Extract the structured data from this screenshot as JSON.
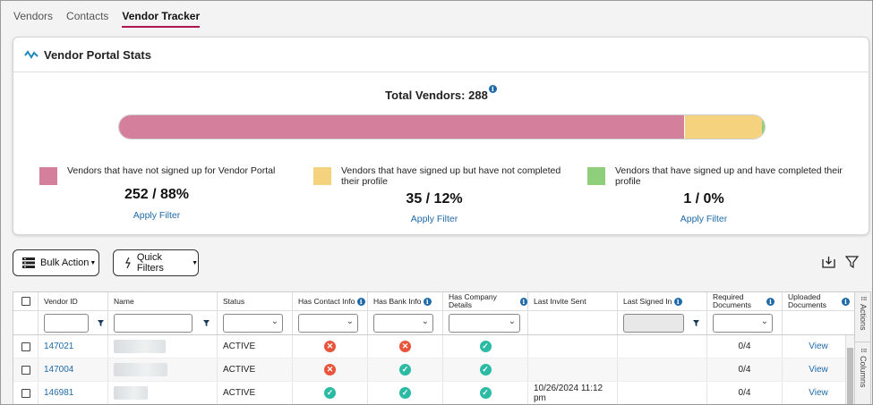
{
  "tabs": [
    "Vendors",
    "Contacts",
    "Vendor Tracker"
  ],
  "active_tab": "Vendor Tracker",
  "stats": {
    "title": "Vendor Portal Stats",
    "total_label": "Total Vendors: 288",
    "bar_colors": {
      "not_signed": "#d47f9c",
      "incomplete": "#f5d27d",
      "complete": "#8fcf7c"
    },
    "bar_fractions": {
      "not_signed": 0.875,
      "incomplete": 0.1215,
      "complete": 0.0035
    },
    "legend": [
      {
        "text": "Vendors that have not signed up for Vendor Portal",
        "value": "252 / 88%",
        "link": "Apply Filter"
      },
      {
        "text": "Vendors that have signed up but have not completed their profile",
        "value": "35 / 12%",
        "link": "Apply Filter"
      },
      {
        "text": "Vendors that have signed up and have completed their profile",
        "value": "1 / 0%",
        "link": "Apply Filter"
      }
    ]
  },
  "toolbar": {
    "bulk_action": "Bulk Action",
    "quick_filters": "Quick Filters",
    "icons": [
      "download-icon",
      "filter-icon"
    ]
  },
  "grid": {
    "headers": [
      "Vendor ID",
      "Name",
      "Status",
      "Has Contact Info",
      "Has Bank Info",
      "Has Company Details",
      "Last Invite Sent",
      "Last Signed In",
      "Required Documents",
      "Uploaded Documents"
    ],
    "side_tabs": [
      "Actions",
      "Columns"
    ],
    "rows": [
      {
        "vendor_id": "147021",
        "status": "ACTIVE",
        "contact": "no",
        "bank": "no",
        "company": "yes",
        "invite": "",
        "signed_in": "",
        "required": "0/4",
        "uploaded": "View"
      },
      {
        "vendor_id": "147004",
        "status": "ACTIVE",
        "contact": "no",
        "bank": "yes",
        "company": "yes",
        "invite": "",
        "signed_in": "",
        "required": "0/4",
        "uploaded": "View"
      },
      {
        "vendor_id": "146981",
        "status": "ACTIVE",
        "contact": "yes",
        "bank": "yes",
        "company": "yes",
        "invite": "10/26/2024 11:12 pm",
        "signed_in": "",
        "required": "0/4",
        "uploaded": "View"
      }
    ]
  }
}
